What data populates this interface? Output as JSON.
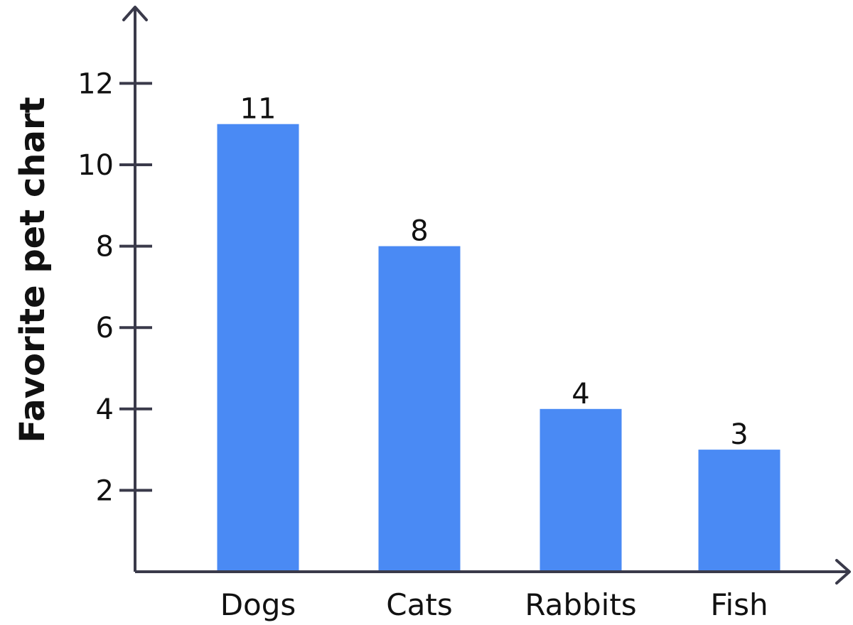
{
  "chart_data": {
    "type": "bar",
    "title": "",
    "xlabel": "",
    "ylabel": "Favorite pet chart",
    "categories": [
      "Dogs",
      "Cats",
      "Rabbits",
      "Fish"
    ],
    "values": [
      11,
      8,
      4,
      3
    ],
    "y_ticks": [
      2,
      4,
      6,
      8,
      10,
      12
    ],
    "ylim": [
      0,
      13.6
    ],
    "grid": false,
    "legend": "none",
    "bar_color": "#4a8af4",
    "axis_color": "#3a3a4a"
  }
}
